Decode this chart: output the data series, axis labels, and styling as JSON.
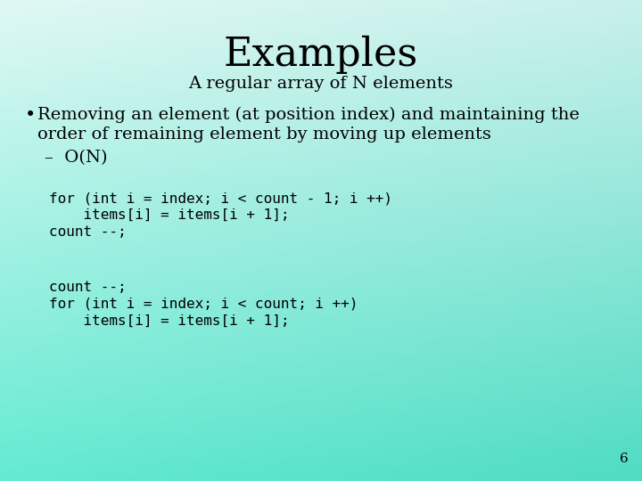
{
  "title": "Examples",
  "subtitle": "A regular array of N elements",
  "bullet_text_line1": "Removing an element (at position index) and maintaining the",
  "bullet_text_line2": "order of remaining element by moving up elements",
  "sub_bullet": "–  O(N)",
  "code_block1_line1": "for (int i = index; i < count - 1; i ++)",
  "code_block1_line2": "    items[i] = items[i + 1];",
  "code_block1_line3": "count --;",
  "code_block2_line1": "count --;",
  "code_block2_line2": "for (int i = index; i < count; i ++)",
  "code_block2_line3": "    items[i] = items[i + 1];",
  "page_number": "6",
  "bg_color_tl": [
    224,
    248,
    244
  ],
  "bg_color_tr": [
    200,
    240,
    235
  ],
  "bg_color_bl": [
    100,
    235,
    210
  ],
  "bg_color_br": [
    80,
    220,
    195
  ],
  "title_fontsize": 32,
  "subtitle_fontsize": 14,
  "bullet_fontsize": 14,
  "code_fontsize": 11.5,
  "page_fontsize": 11
}
